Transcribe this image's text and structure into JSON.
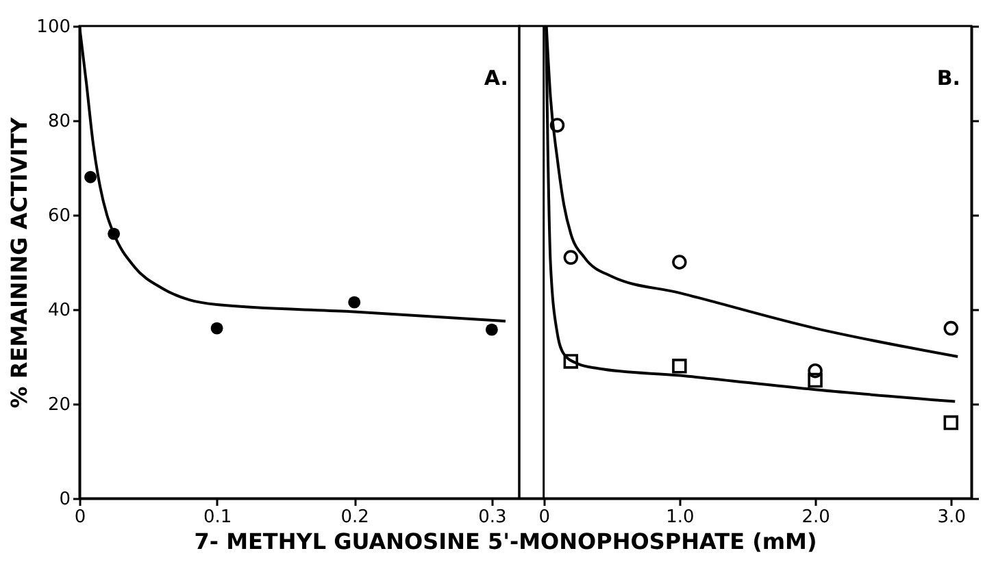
{
  "chart_data": [
    {
      "type": "scatter",
      "ylabel": "% REMAINING ACTIVITY",
      "xlabel": "7- METHYL  GUANOSINE  5'-MONOPHOSPHATE (mM)",
      "annotations": [
        "A."
      ],
      "xlim": [
        0,
        0.32
      ],
      "xticks": [
        0,
        0.1,
        0.2,
        0.3
      ],
      "ylim": [
        0,
        100
      ],
      "yticks": [
        0,
        20,
        40,
        60,
        80,
        100
      ],
      "grid": false,
      "series": [
        {
          "marker": "circle",
          "color": "#000000",
          "x": [
            0.008,
            0.025,
            0.1,
            0.2,
            0.3
          ],
          "values": [
            68,
            56,
            36,
            41.5,
            35.7
          ]
        },
        {
          "type": "line",
          "marker": "none",
          "line_style": "solid",
          "color": "#000000",
          "x": [
            0,
            0.005,
            0.01,
            0.015,
            0.02,
            0.025,
            0.04,
            0.06,
            0.08,
            0.1,
            0.2,
            0.31
          ],
          "values": [
            100,
            88,
            75,
            66,
            60,
            56,
            49,
            44.5,
            42,
            41,
            39.5,
            37.5
          ]
        }
      ]
    },
    {
      "type": "scatter",
      "annotations": [
        "B."
      ],
      "tick_labels": "x",
      "xlim": [
        -0.18,
        3.15
      ],
      "xticks": [
        0,
        {
          "value": 1,
          "label": "1.0"
        },
        {
          "value": 2,
          "label": "2.0"
        },
        {
          "value": 3,
          "label": "3.0"
        }
      ],
      "ylim": [
        0,
        100
      ],
      "yticks": [
        {
          "value": 0,
          "label": null
        },
        {
          "value": 20,
          "label": null
        },
        {
          "value": 40,
          "label": null
        },
        {
          "value": 60,
          "label": null
        },
        {
          "value": 80,
          "label": null
        },
        {
          "value": 100,
          "label": null
        }
      ],
      "grid": false,
      "ref_lines": [
        {
          "axis": "x",
          "value": 0,
          "color": "#000000"
        }
      ],
      "series": [
        {
          "marker": "circle",
          "color": "#000000",
          "x": [
            0.1,
            0.2,
            1.0,
            2.0,
            3.0
          ],
          "values": [
            79,
            51,
            50,
            27,
            36
          ]
        },
        {
          "marker": "square",
          "color": "#000000",
          "x": [
            0.2,
            1.0,
            2.0,
            3.0
          ],
          "values": [
            29,
            28,
            25,
            16
          ]
        },
        {
          "type": "line",
          "marker": "none",
          "line_style": "solid",
          "color": "#000000",
          "x": [
            0.02,
            0.05,
            0.1,
            0.15,
            0.2,
            0.3,
            0.5,
            1.0,
            2.0,
            3.05
          ],
          "values": [
            100,
            85,
            72,
            62,
            56,
            51,
            47,
            43.5,
            36,
            30
          ]
        },
        {
          "type": "line",
          "marker": "none",
          "line_style": "solid",
          "color": "#000000",
          "x": [
            0.017,
            0.03,
            0.05,
            0.1,
            0.15,
            0.25,
            0.4,
            1.0,
            2.0,
            3.03
          ],
          "values": [
            100,
            75,
            50,
            35,
            30.5,
            28.5,
            27.5,
            26,
            23,
            20.5
          ]
        }
      ]
    }
  ]
}
